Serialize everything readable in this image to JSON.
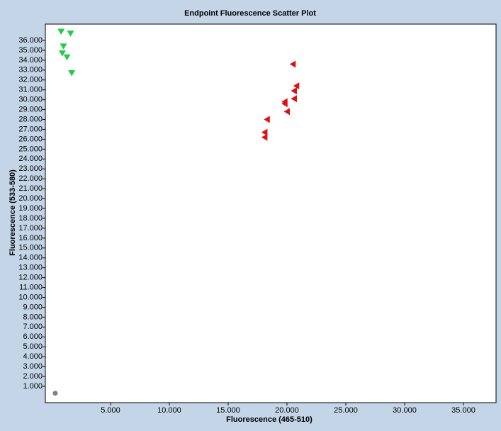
{
  "chart_data": {
    "type": "scatter",
    "title": "Endpoint Fluorescence Scatter Plot",
    "x_label": "Fluorescence (465-510)",
    "y_label": "Fluorescence (533-580)",
    "xlim": [
      -540,
      37770
    ],
    "ylim": [
      -650,
      37650
    ],
    "xticks": [
      {
        "value": 5000,
        "label": "5.000"
      },
      {
        "value": 10000,
        "label": "10.000"
      },
      {
        "value": 15000,
        "label": "15.000"
      },
      {
        "value": 20000,
        "label": "20.000"
      },
      {
        "value": 25000,
        "label": "25.000"
      },
      {
        "value": 30000,
        "label": "30.000"
      },
      {
        "value": 35000,
        "label": "35.000"
      }
    ],
    "yticks": [
      {
        "value": 1000,
        "label": "1.000"
      },
      {
        "value": 2000,
        "label": "2.000"
      },
      {
        "value": 3000,
        "label": "3.000"
      },
      {
        "value": 4000,
        "label": "4.000"
      },
      {
        "value": 5000,
        "label": "5.000"
      },
      {
        "value": 6000,
        "label": "6.000"
      },
      {
        "value": 7000,
        "label": "7.000"
      },
      {
        "value": 8000,
        "label": "8.000"
      },
      {
        "value": 9000,
        "label": "9.000"
      },
      {
        "value": 10000,
        "label": "10.000"
      },
      {
        "value": 11000,
        "label": "11.000"
      },
      {
        "value": 12000,
        "label": "12.000"
      },
      {
        "value": 13000,
        "label": "13.000"
      },
      {
        "value": 14000,
        "label": "14.000"
      },
      {
        "value": 15000,
        "label": "15.000"
      },
      {
        "value": 16000,
        "label": "16.000"
      },
      {
        "value": 17000,
        "label": "17.000"
      },
      {
        "value": 18000,
        "label": "18.000"
      },
      {
        "value": 19000,
        "label": "19.000"
      },
      {
        "value": 20000,
        "label": "20.000"
      },
      {
        "value": 21000,
        "label": "21.000"
      },
      {
        "value": 22000,
        "label": "22.000"
      },
      {
        "value": 23000,
        "label": "23.000"
      },
      {
        "value": 24000,
        "label": "24.000"
      },
      {
        "value": 25000,
        "label": "25.000"
      },
      {
        "value": 26000,
        "label": "26.000"
      },
      {
        "value": 27000,
        "label": "27.000"
      },
      {
        "value": 28000,
        "label": "28.000"
      },
      {
        "value": 29000,
        "label": "29.000"
      },
      {
        "value": 30000,
        "label": "30.000"
      },
      {
        "value": 31000,
        "label": "31.000"
      },
      {
        "value": 32000,
        "label": "32.000"
      },
      {
        "value": 33000,
        "label": "33.000"
      },
      {
        "value": 34000,
        "label": "34.000"
      },
      {
        "value": 35000,
        "label": "35.000"
      },
      {
        "value": 36000,
        "label": "36.000"
      }
    ],
    "series": [
      {
        "color": "#22cc44",
        "marker": "triangle-down",
        "x": [
          800,
          1600,
          1000,
          900,
          1300,
          1700
        ],
        "values": [
          36900,
          36700,
          35400,
          34700,
          34300,
          32700
        ]
      },
      {
        "color": "#dd1111",
        "marker": "triangle-left",
        "x": [
          20500,
          20800,
          20600,
          20600,
          19800,
          19800,
          20000,
          18300,
          18100,
          18100
        ],
        "values": [
          33600,
          31400,
          30900,
          30100,
          29800,
          29600,
          28800,
          28000,
          26700,
          26200
        ]
      },
      {
        "color": "#808080",
        "marker": "circle",
        "x": [
          300
        ],
        "values": [
          300
        ]
      }
    ]
  }
}
